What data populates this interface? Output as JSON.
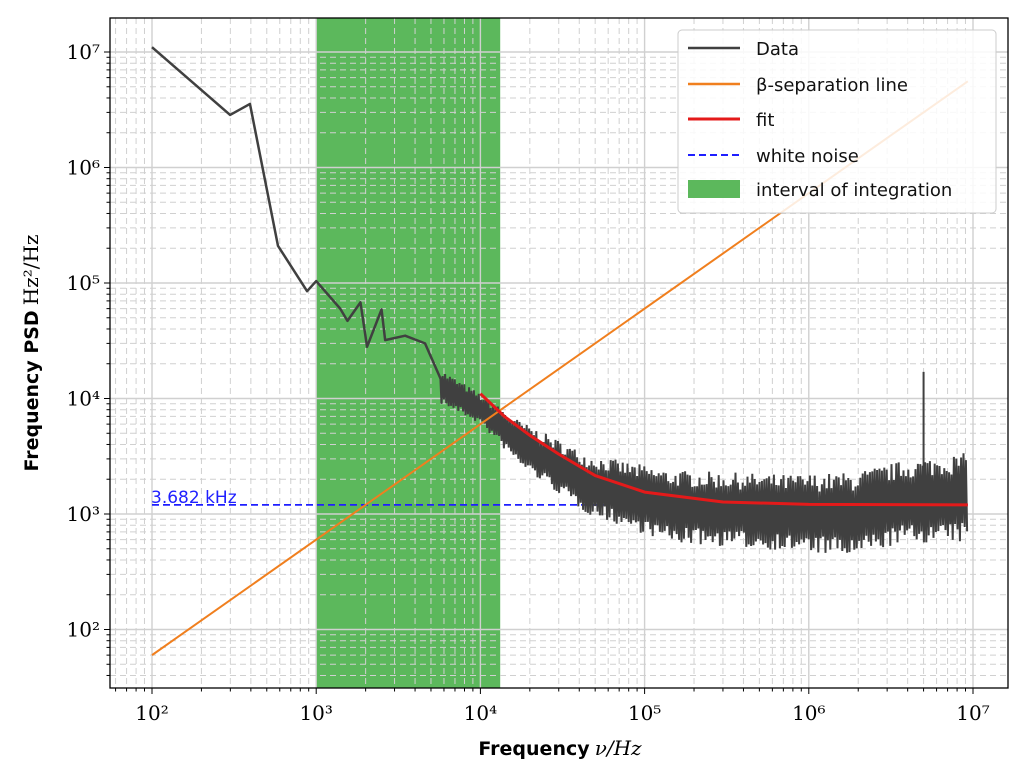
{
  "chart_data": {
    "type": "line",
    "xscale": "log",
    "yscale": "log",
    "xlim": [
      55,
      16000000
    ],
    "ylim": [
      31,
      19700000
    ],
    "grid": {
      "major": "solid",
      "minor": "dashed"
    },
    "xlabel": {
      "bold": "Frequency",
      "math": "ν/Hz"
    },
    "ylabel": {
      "bold": "Frequency PSD",
      "math": "Hz²/Hz"
    },
    "x_ticks": [
      100,
      1000,
      10000,
      100000,
      1000000,
      10000000
    ],
    "x_tick_labels": [
      "10²",
      "10³",
      "10⁴",
      "10⁵",
      "10⁶",
      "10⁷"
    ],
    "y_ticks": [
      100,
      1000,
      10000,
      100000,
      1000000,
      10000000
    ],
    "y_tick_labels": [
      "10²",
      "10³",
      "10⁴",
      "10⁵",
      "10⁶",
      "10⁷"
    ],
    "legend_position": "top-right",
    "colors": {
      "data": "#404040",
      "separation": "#f07f1e",
      "fit": "#e41a1a",
      "white_noise": "#1f1fff",
      "interval": "#5cb85c"
    },
    "series": [
      {
        "name": "Data",
        "low_freq_points": [
          [
            100,
            11000000
          ],
          [
            299,
            2850000
          ],
          [
            395,
            3550000
          ],
          [
            585,
            210000
          ],
          [
            880,
            85000
          ],
          [
            1000,
            104000
          ],
          [
            1400,
            60000
          ],
          [
            1550,
            47000
          ],
          [
            1860,
            68000
          ],
          [
            2040,
            28000
          ],
          [
            2500,
            59000
          ],
          [
            2630,
            32000
          ],
          [
            3480,
            35000
          ],
          [
            4600,
            30000
          ],
          [
            5700,
            15000
          ],
          [
            7500,
            10000
          ],
          [
            10000,
            9000
          ]
        ],
        "noise_envelope": {
          "freq": [
            5700,
            10000,
            17400,
            44700,
            143000,
            740000,
            1860000,
            3750000,
            9300000
          ],
          "upper": [
            18000,
            11000,
            6400,
            3300,
            2400,
            2200,
            2300,
            2900,
            3400
          ],
          "lower": [
            9000,
            6000,
            2600,
            1000,
            560,
            480,
            420,
            560,
            560
          ]
        },
        "spike": {
          "freq": 5000000,
          "value": 17000
        }
      },
      {
        "name": "β-separation line",
        "points": [
          [
            100,
            60
          ],
          [
            9300000,
            5580000
          ]
        ]
      },
      {
        "name": "fit",
        "points": [
          [
            10000,
            11000
          ],
          [
            14000,
            7000
          ],
          [
            20000,
            4800
          ],
          [
            30000,
            3300
          ],
          [
            50000,
            2150
          ],
          [
            100000,
            1548
          ],
          [
            300000,
            1270
          ],
          [
            1000000,
            1213
          ],
          [
            9300000,
            1200
          ]
        ]
      },
      {
        "name": "white noise",
        "points": [
          [
            100,
            1200
          ],
          [
            9300000,
            1200
          ]
        ]
      },
      {
        "name": "interval of integration",
        "span": [
          1000,
          13200
        ]
      }
    ],
    "annotations": [
      {
        "text": "3.682 kHz",
        "x": 100,
        "y": 1200
      }
    ]
  }
}
